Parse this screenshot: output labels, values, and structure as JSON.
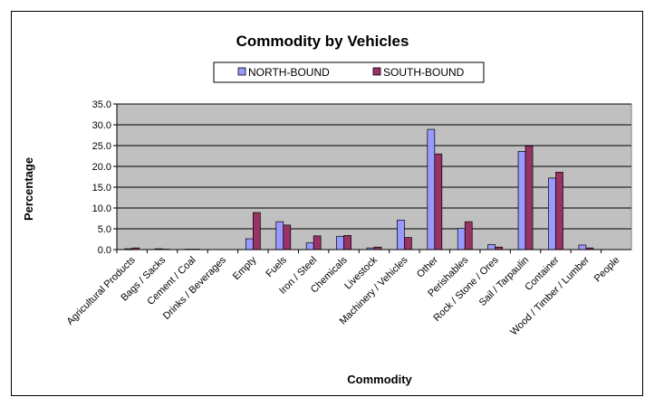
{
  "chart_data": {
    "type": "bar",
    "title": "Commodity by Vehicles",
    "xlabel": "Commodity",
    "ylabel": "Percentage",
    "ylim": [
      0,
      35
    ],
    "yticks": [
      "0.0",
      "5.0",
      "10.0",
      "15.0",
      "20.0",
      "25.0",
      "30.0",
      "35.0"
    ],
    "ytick_values": [
      0,
      5,
      10,
      15,
      20,
      25,
      30,
      35
    ],
    "grid": true,
    "legend": "top-center",
    "categories": [
      "Agricultural Products",
      "Bags / Sacks",
      "Cement / Coal",
      "Drinks / Beverages",
      "Empty",
      "Fuels",
      "Iron / Steel",
      "Chemicals",
      "Livestock",
      "Machinery / Vehicles",
      "Other",
      "Perishables",
      "Rock / Stone / Ores",
      "Sail / Tarpaulin",
      "Container",
      "Wood / Timber / Lumber",
      "People"
    ],
    "series": [
      {
        "name": "NORTH-BOUND",
        "color": "#9999ff",
        "values": [
          0.2,
          0.2,
          0.1,
          0.0,
          2.6,
          6.7,
          1.6,
          3.2,
          0.4,
          7.1,
          28.9,
          5.1,
          1.2,
          23.6,
          17.2,
          1.1,
          0.0
        ]
      },
      {
        "name": "SOUTH-BOUND",
        "color": "#993366",
        "values": [
          0.4,
          0.1,
          0.1,
          0.0,
          8.9,
          5.9,
          3.3,
          3.4,
          0.6,
          2.9,
          23.0,
          6.7,
          0.6,
          24.9,
          18.6,
          0.4,
          0.0
        ]
      }
    ],
    "plot_background": "#c0c0c0"
  }
}
